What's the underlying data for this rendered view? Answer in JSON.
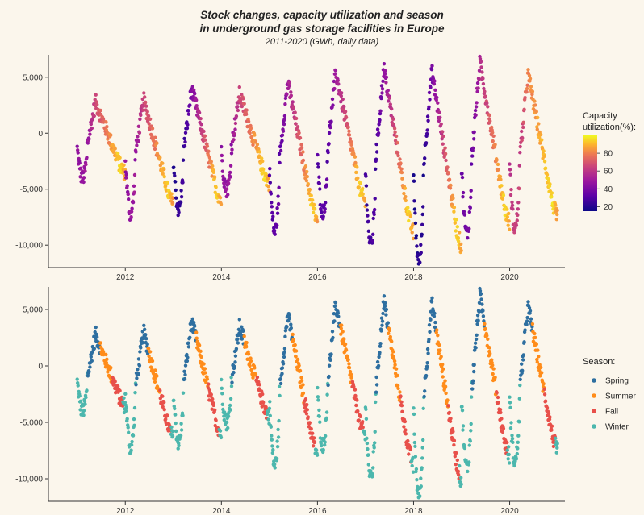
{
  "title_line1": "Stock changes, capacity utilization and season",
  "title_line2": "in underground gas storage facilities in Europe",
  "subtitle": "2011-2020 (GWh, daily data)",
  "colors": {
    "background": "#fbf6ec",
    "spring": "#2e6fa0",
    "summer": "#ff8c1a",
    "fall": "#e8504a",
    "winter": "#4cb7ad",
    "viridis_low": "#0d0887",
    "viridis_high": "#f9f000"
  },
  "chart_data": [
    {
      "type": "scatter",
      "panel": "top",
      "color_by": "capacity_utilization",
      "colorbar": {
        "title_line1": "Capacity",
        "title_line2": "utilization(%):",
        "ticks": [
          20,
          40,
          60,
          80
        ],
        "range": [
          15,
          100
        ],
        "palette": "plasma"
      },
      "x_ticks": [
        2012,
        2014,
        2016,
        2018,
        2020
      ],
      "x_tick_labels": [
        "2012",
        "2014",
        "2016",
        "2018",
        "2020"
      ],
      "y_ticks": [
        -10000,
        -5000,
        0,
        5000
      ],
      "y_tick_labels": [
        "-10,000",
        "-5,000",
        "0",
        "5,000"
      ],
      "xlim": [
        2010.4,
        2021.15
      ],
      "ylim": [
        -12000,
        7000
      ],
      "yearly_pattern": [
        {
          "year": 2011,
          "min": -4000,
          "peak": 2800,
          "min_util": 45
        },
        {
          "year": 2012,
          "min": -7200,
          "peak": 3000,
          "min_util": 45
        },
        {
          "year": 2013,
          "min": -6800,
          "peak": 4000,
          "min_util": 20
        },
        {
          "year": 2014,
          "min": -5000,
          "peak": 3500,
          "min_util": 45
        },
        {
          "year": 2015,
          "min": -8800,
          "peak": 4500,
          "min_util": 30
        },
        {
          "year": 2016,
          "min": -7000,
          "peak": 5400,
          "min_util": 30
        },
        {
          "year": 2017,
          "min": -10000,
          "peak": 5800,
          "min_util": 25
        },
        {
          "year": 2018,
          "min": -11500,
          "peak": 5600,
          "min_util": 18
        },
        {
          "year": 2019,
          "min": -9000,
          "peak": 6300,
          "min_util": 35
        },
        {
          "year": 2020,
          "min": -8500,
          "peak": 5300,
          "min_util": 60
        }
      ]
    },
    {
      "type": "scatter",
      "panel": "bottom",
      "color_by": "season",
      "legend": {
        "title": "Season:",
        "entries": [
          "Spring",
          "Summer",
          "Fall",
          "Winter"
        ]
      },
      "x_ticks": [
        2012,
        2014,
        2016,
        2018,
        2020
      ],
      "x_tick_labels": [
        "2012",
        "2014",
        "2016",
        "2018",
        "2020"
      ],
      "y_ticks": [
        -10000,
        -5000,
        0,
        5000
      ],
      "y_tick_labels": [
        "-10,000",
        "-5,000",
        "0",
        "5,000"
      ],
      "xlim": [
        2010.4,
        2021.15
      ],
      "ylim": [
        -12000,
        7000
      ]
    }
  ]
}
